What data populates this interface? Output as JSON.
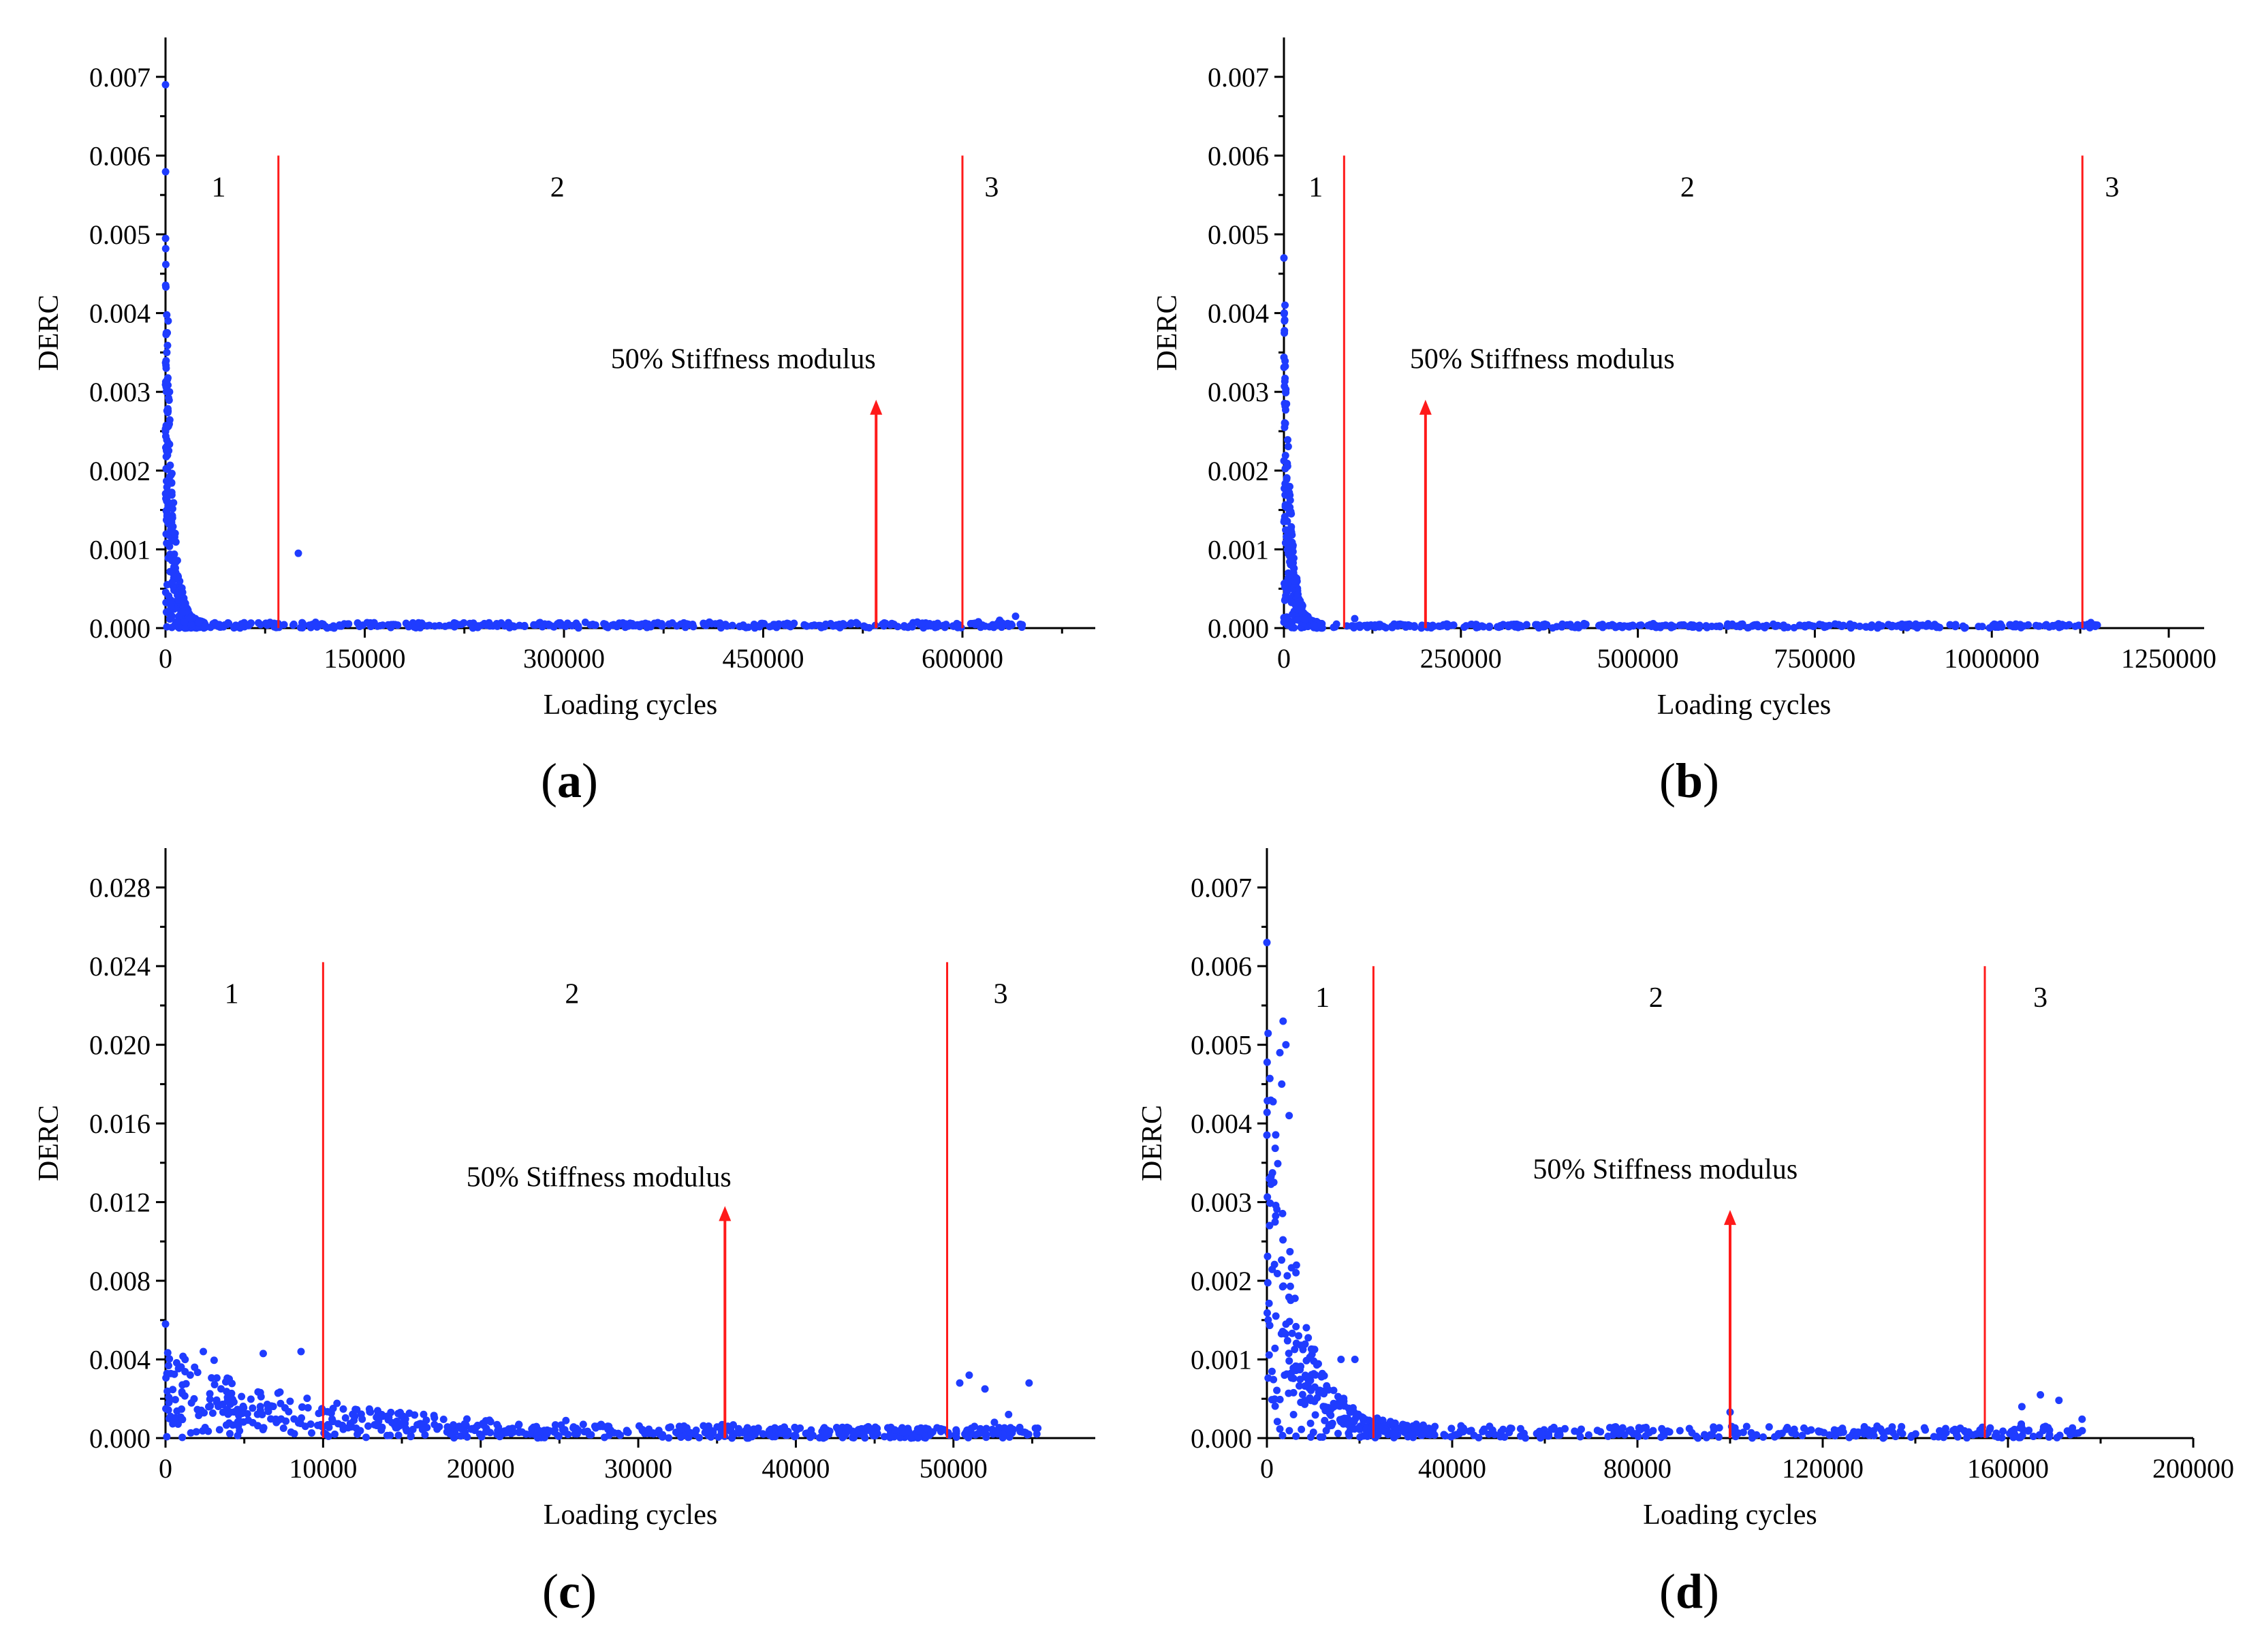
{
  "chart_data": [
    {
      "id": "a",
      "panel_label_open": "(",
      "panel_label_letter": "a",
      "panel_label_close": ")",
      "type": "scatter",
      "xlabel": "Loading cycles",
      "ylabel": "DERC",
      "xlim": [
        0,
        700000
      ],
      "ylim": [
        0,
        0.0075
      ],
      "xticks": [
        0,
        150000,
        300000,
        450000,
        600000
      ],
      "xtick_labels": [
        "0",
        "150000",
        "300000",
        "450000",
        "600000"
      ],
      "yticks": [
        0,
        0.001,
        0.002,
        0.003,
        0.004,
        0.005,
        0.006,
        0.007
      ],
      "ytick_labels": [
        "0.000",
        "0.001",
        "0.002",
        "0.003",
        "0.004",
        "0.005",
        "0.006",
        "0.007"
      ],
      "boundaries": [
        85000,
        600000
      ],
      "boundary_top": 0.006,
      "regions": [
        {
          "label": "1",
          "x": 40000
        },
        {
          "label": "2",
          "x": 295000
        },
        {
          "label": "3",
          "x": 622000
        }
      ],
      "annotation": {
        "text": "50% Stiffness modulus",
        "text_x": 435000,
        "text_y": 0.0033,
        "arrow_x": 535000,
        "arrow_top": 0.0029
      },
      "series": [
        {
          "name": "DERC",
          "color": "#1f3cff",
          "profile": {
            "x_max": 645000,
            "peak": 0.0029,
            "decay": 5000,
            "floor": 4e-05,
            "noise": 0.8,
            "n": 700
          },
          "outliers": [
            [
              0,
              0.0069
            ],
            [
              2000,
              0.0039
            ],
            [
              1000,
              0.0035
            ],
            [
              500,
              0.0033
            ],
            [
              3000,
              0.003
            ],
            [
              100000,
              0.00095
            ],
            [
              628000,
              0.0001
            ],
            [
              640000,
              0.00015
            ],
            [
              612000,
              8e-05
            ]
          ]
        }
      ]
    },
    {
      "id": "b",
      "panel_label_open": "(",
      "panel_label_letter": "b",
      "panel_label_close": ")",
      "type": "scatter",
      "xlabel": "Loading cycles",
      "ylabel": "DERC",
      "xlim": [
        0,
        1300000
      ],
      "ylim": [
        0,
        0.0075
      ],
      "xticks": [
        0,
        250000,
        500000,
        750000,
        1000000,
        1250000
      ],
      "xtick_labels": [
        "0",
        "250000",
        "500000",
        "750000",
        "1000000",
        "1250000"
      ],
      "yticks": [
        0,
        0.001,
        0.002,
        0.003,
        0.004,
        0.005,
        0.006,
        0.007
      ],
      "ytick_labels": [
        "0.000",
        "0.001",
        "0.002",
        "0.003",
        "0.004",
        "0.005",
        "0.006",
        "0.007"
      ],
      "boundaries": [
        85000,
        1128000
      ],
      "boundary_top": 0.006,
      "regions": [
        {
          "label": "1",
          "x": 45000
        },
        {
          "label": "2",
          "x": 570000
        },
        {
          "label": "3",
          "x": 1170000
        }
      ],
      "annotation": {
        "text": "50% Stiffness modulus",
        "text_x": 365000,
        "text_y": 0.0033,
        "arrow_x": 200000,
        "arrow_top": 0.0029
      },
      "series": [
        {
          "name": "DERC",
          "color": "#1f3cff",
          "profile": {
            "x_max": 1150000,
            "peak": 0.0026,
            "decay": 9000,
            "floor": 3e-05,
            "noise": 0.8,
            "n": 650
          },
          "outliers": [
            [
              0,
              0.0047
            ],
            [
              1500,
              0.0041
            ],
            [
              800,
              0.0039
            ],
            [
              2500,
              0.003
            ],
            [
              100000,
              0.00012
            ],
            [
              1140000,
              7e-05
            ]
          ]
        }
      ]
    },
    {
      "id": "c",
      "panel_label_open": "(",
      "panel_label_letter": "c",
      "panel_label_close": ")",
      "type": "scatter",
      "xlabel": "Loading cycles",
      "ylabel": "DERC",
      "xlim": [
        0,
        59000
      ],
      "ylim": [
        0,
        0.03
      ],
      "xticks": [
        0,
        10000,
        20000,
        30000,
        40000,
        50000
      ],
      "xtick_labels": [
        "0",
        "10000",
        "20000",
        "30000",
        "40000",
        "50000"
      ],
      "yticks": [
        0,
        0.004,
        0.008,
        0.012,
        0.016,
        0.02,
        0.024,
        0.028
      ],
      "ytick_labels": [
        "0.000",
        "0.004",
        "0.008",
        "0.012",
        "0.016",
        "0.020",
        "0.024",
        "0.028"
      ],
      "boundaries": [
        10000,
        49600
      ],
      "boundary_top": 0.0242,
      "regions": [
        {
          "label": "1",
          "x": 4200
        },
        {
          "label": "2",
          "x": 25800
        },
        {
          "label": "3",
          "x": 53000
        }
      ],
      "annotation": {
        "text": "50% Stiffness modulus",
        "text_x": 27500,
        "text_y": 0.0128,
        "arrow_x": 35500,
        "arrow_top": 0.0118
      },
      "series": [
        {
          "name": "DERC",
          "color": "#1f3cff",
          "profile": {
            "x_max": 55500,
            "peak": 0.0022,
            "decay": 9000,
            "floor": 0.00028,
            "noise": 1.0,
            "n": 650
          },
          "outliers": [
            [
              0,
              0.0058
            ],
            [
              2400,
              0.0044
            ],
            [
              6200,
              0.0043
            ],
            [
              8600,
              0.0044
            ],
            [
              50400,
              0.0028
            ],
            [
              51000,
              0.0032
            ],
            [
              52000,
              0.0025
            ],
            [
              53500,
              0.0012
            ],
            [
              54800,
              0.0028
            ],
            [
              52600,
              0.0008
            ],
            [
              55200,
              0.0005
            ]
          ]
        }
      ]
    },
    {
      "id": "d",
      "panel_label_open": "(",
      "panel_label_letter": "d",
      "panel_label_close": ")",
      "type": "scatter",
      "xlabel": "Loading cycles",
      "ylabel": "DERC",
      "xlim": [
        0,
        200000
      ],
      "ylim": [
        0,
        0.0075
      ],
      "xticks": [
        0,
        40000,
        80000,
        120000,
        160000,
        200000
      ],
      "xtick_labels": [
        "0",
        "40000",
        "80000",
        "120000",
        "160000",
        "200000"
      ],
      "yticks": [
        0,
        0.001,
        0.002,
        0.003,
        0.004,
        0.005,
        0.006,
        0.007
      ],
      "ytick_labels": [
        "0.000",
        "0.001",
        "0.002",
        "0.003",
        "0.004",
        "0.005",
        "0.006",
        "0.007"
      ],
      "boundaries": [
        23000,
        155000
      ],
      "boundary_top": 0.006,
      "regions": [
        {
          "label": "1",
          "x": 12000
        },
        {
          "label": "2",
          "x": 84000
        },
        {
          "label": "3",
          "x": 167000
        }
      ],
      "annotation": {
        "text": "50% Stiffness modulus",
        "text_x": 86000,
        "text_y": 0.0033,
        "arrow_x": 100000,
        "arrow_top": 0.0029
      },
      "series": [
        {
          "name": "DERC",
          "color": "#1f3cff",
          "profile": {
            "x_max": 178000,
            "peak": 0.0028,
            "decay": 6000,
            "floor": 8e-05,
            "noise": 1.0,
            "n": 550
          },
          "outliers": [
            [
              0,
              0.0063
            ],
            [
              3500,
              0.0053
            ],
            [
              2800,
              0.0049
            ],
            [
              4100,
              0.005
            ],
            [
              3200,
              0.0045
            ],
            [
              4800,
              0.0041
            ],
            [
              19000,
              0.001
            ],
            [
              16000,
              0.001
            ],
            [
              167000,
              0.00055
            ],
            [
              171000,
              0.00048
            ],
            [
              163000,
              0.0004
            ],
            [
              176000,
              0.00024
            ],
            [
              100000,
              0.00033
            ]
          ]
        }
      ]
    }
  ]
}
